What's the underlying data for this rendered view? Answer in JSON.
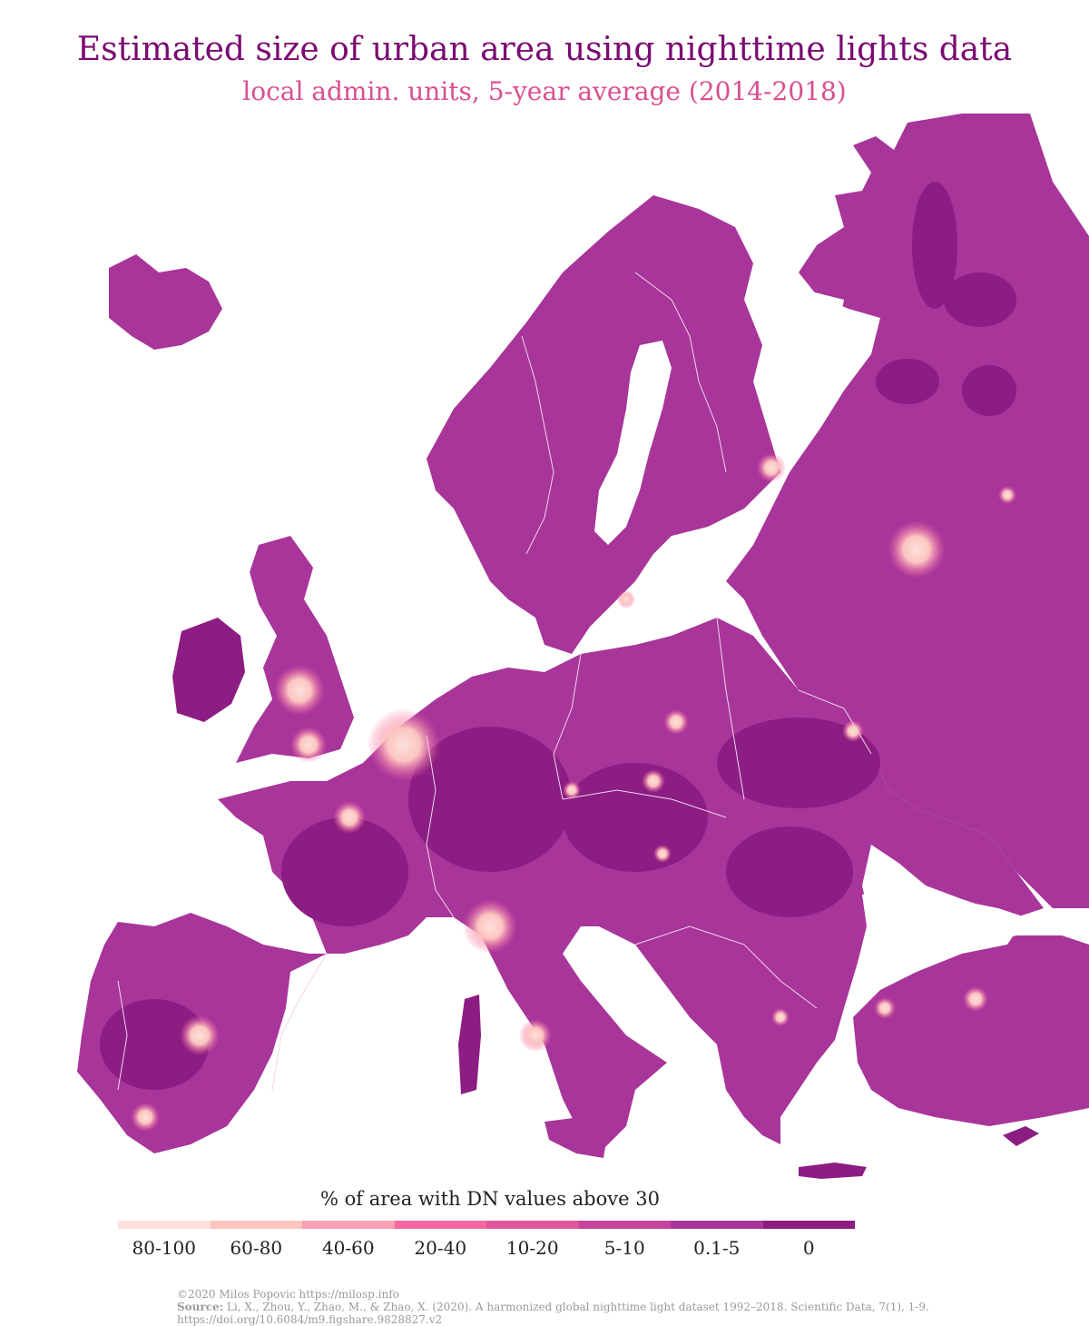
{
  "header": {
    "title": "Estimated size of urban area using nighttime lights data",
    "subtitle": "local admin. units, 5-year average (2014-2018)"
  },
  "legend": {
    "title": "% of area with DN values above 30",
    "classes": [
      {
        "label": "80-100",
        "color": "#fde0dd"
      },
      {
        "label": "60-80",
        "color": "#fcc5c0"
      },
      {
        "label": "40-60",
        "color": "#fa9fb5"
      },
      {
        "label": "20-40",
        "color": "#f768a1"
      },
      {
        "label": "10-20",
        "color": "#e0569d"
      },
      {
        "label": "5-10",
        "color": "#c6459b"
      },
      {
        "label": "0.1-5",
        "color": "#a8359a"
      },
      {
        "label": "0",
        "color": "#8c1d82"
      }
    ]
  },
  "footer": {
    "credit": "©2020 Milos Popovic https://milosp.info",
    "source_label": "Source:",
    "source_text": "Li, X., Zhou, Y., Zhao, M., & Zhao, X. (2020). A harmonized global nighttime light dataset 1992–2018. Scientific Data, 7(1), 1-9.",
    "doi": "https://doi.org/10.6084/m9.figshare.9828827.v2"
  },
  "map": {
    "base_color": "#a8359a",
    "dark_color": "#8c1d82",
    "border_color": "#f2d4ec"
  }
}
